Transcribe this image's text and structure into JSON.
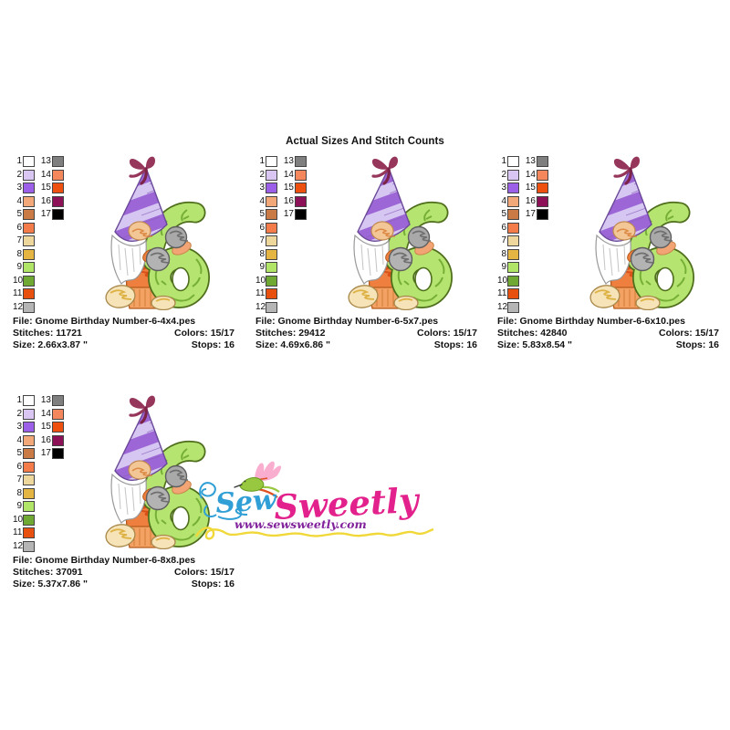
{
  "title": "Actual Sizes And Stitch Counts",
  "palette": {
    "left_column": [
      {
        "num": "1",
        "color": "#ffffff"
      },
      {
        "num": "2",
        "color": "#d9c6f2"
      },
      {
        "num": "3",
        "color": "#9c5fe8"
      },
      {
        "num": "4",
        "color": "#f2a878"
      },
      {
        "num": "5",
        "color": "#c97a45"
      },
      {
        "num": "6",
        "color": "#f37c4a"
      },
      {
        "num": "7",
        "color": "#eed79c"
      },
      {
        "num": "8",
        "color": "#e5b544"
      },
      {
        "num": "9",
        "color": "#b0e568"
      },
      {
        "num": "10",
        "color": "#6fa832"
      },
      {
        "num": "11",
        "color": "#e8500f"
      },
      {
        "num": "12",
        "color": "#b5b5b5"
      }
    ],
    "right_column": [
      {
        "num": "13",
        "color": "#7f7f7f"
      },
      {
        "num": "14",
        "color": "#f5875c"
      },
      {
        "num": "15",
        "color": "#ee5010"
      },
      {
        "num": "16",
        "color": "#8c1157"
      },
      {
        "num": "17",
        "color": "#000000"
      }
    ]
  },
  "panels": [
    {
      "file": "File: Gnome Birthday Number-6-4x4.pes",
      "stitches": "Stitches: 11721",
      "colors": "Colors: 15/17",
      "size": "Size: 2.66x3.87 \"",
      "stops": "Stops: 16"
    },
    {
      "file": "File: Gnome Birthday Number-6-5x7.pes",
      "stitches": "Stitches: 29412",
      "colors": "Colors: 15/17",
      "size": "Size: 4.69x6.86 \"",
      "stops": "Stops: 16"
    },
    {
      "file": "File: Gnome Birthday Number-6-6x10.pes",
      "stitches": "Stitches: 42840",
      "colors": "Colors: 15/17",
      "size": "Size: 5.83x8.54 \"",
      "stops": "Stops: 16"
    },
    {
      "file": "File: Gnome Birthday Number-6-8x8.pes",
      "stitches": "Stitches: 37091",
      "colors": "Colors: 15/17",
      "size": "Size: 5.37x7.86 \"",
      "stops": "Stops: 16"
    }
  ],
  "logo": {
    "sew": "Sew",
    "sweetly": "Sweetly",
    "website": "www.sewsweetly.com",
    "colors": {
      "sew_blue": "#2f9fd6",
      "sweetly_pink": "#e3218c",
      "website_purple": "#82249c",
      "squiggle_yellow": "#f0d838",
      "bird_wing_pink": "#f9aed0",
      "bird_body_green": "#97c83f"
    }
  },
  "artwork_colors": {
    "hat_light": "#d6c7f2",
    "hat_stripe": "#9d66d6",
    "bow_maroon": "#96365a",
    "number_six_green": "#b6e470",
    "number_six_outline": "#4e6e1c",
    "body_orange": "#ee7f3e",
    "mitten_gray": "#a9a9a9",
    "foot_cream": "#f6e4b8"
  }
}
